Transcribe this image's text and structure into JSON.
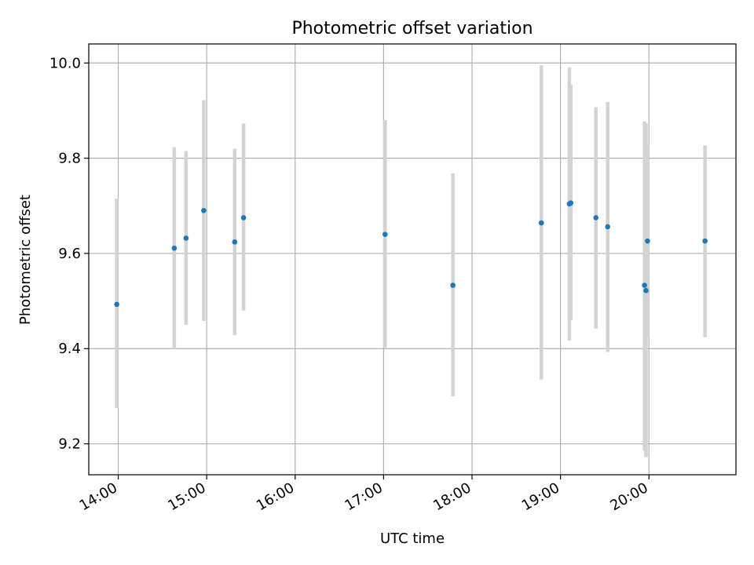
{
  "chart_data": {
    "type": "scatter",
    "title": "Photometric offset variation",
    "xlabel": "UTC time",
    "ylabel": "Photometric offset",
    "grid": true,
    "x_ticks": [
      "14:00",
      "15:00",
      "16:00",
      "17:00",
      "18:00",
      "19:00",
      "20:00"
    ],
    "y_ticks": [
      "9.2",
      "9.4",
      "9.6",
      "9.8",
      "10.0"
    ],
    "xlim": [
      "13:40",
      "20:59"
    ],
    "ylim": [
      9.135,
      10.04
    ],
    "colors": {
      "point": "#1f77b4",
      "errorbar": "#d3d3d3",
      "grid": "#b0b0b0"
    },
    "points": [
      {
        "x": "13:59",
        "y": 9.493,
        "ylow": 9.275,
        "yhigh": 9.715
      },
      {
        "x": "14:38",
        "y": 9.611,
        "ylow": 9.4,
        "yhigh": 9.823
      },
      {
        "x": "14:46",
        "y": 9.632,
        "ylow": 9.45,
        "yhigh": 9.815
      },
      {
        "x": "14:58",
        "y": 9.69,
        "ylow": 9.458,
        "yhigh": 9.922
      },
      {
        "x": "15:19",
        "y": 9.624,
        "ylow": 9.428,
        "yhigh": 9.82
      },
      {
        "x": "15:25",
        "y": 9.675,
        "ylow": 9.48,
        "yhigh": 9.873
      },
      {
        "x": "17:01",
        "y": 9.64,
        "ylow": 9.402,
        "yhigh": 9.88
      },
      {
        "x": "17:47",
        "y": 9.533,
        "ylow": 9.3,
        "yhigh": 9.768
      },
      {
        "x": "18:47",
        "y": 9.664,
        "ylow": 9.335,
        "yhigh": 9.995
      },
      {
        "x": "19:06",
        "y": 9.704,
        "ylow": 9.417,
        "yhigh": 9.991
      },
      {
        "x": "19:07",
        "y": 9.706,
        "ylow": 9.46,
        "yhigh": 9.955
      },
      {
        "x": "19:24",
        "y": 9.675,
        "ylow": 9.442,
        "yhigh": 9.907
      },
      {
        "x": "19:32",
        "y": 9.656,
        "ylow": 9.393,
        "yhigh": 9.918
      },
      {
        "x": "19:57",
        "y": 9.533,
        "ylow": 9.185,
        "yhigh": 9.877
      },
      {
        "x": "19:58",
        "y": 9.522,
        "ylow": 9.172,
        "yhigh": 9.873
      },
      {
        "x": "19:59",
        "y": 9.626,
        "ylow": 9.423,
        "yhigh": 9.828
      },
      {
        "x": "20:38",
        "y": 9.626,
        "ylow": 9.424,
        "yhigh": 9.827
      }
    ]
  }
}
